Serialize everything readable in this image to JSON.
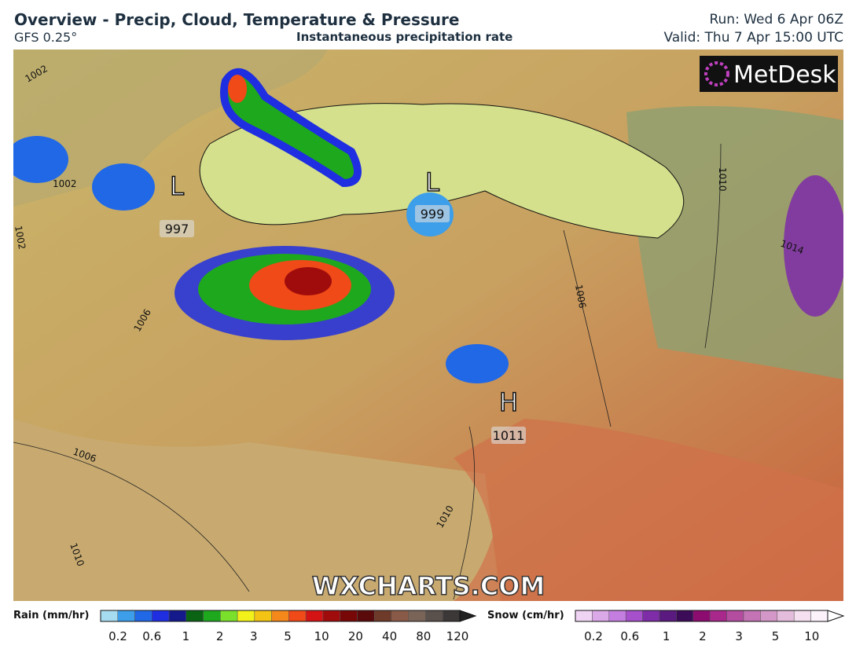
{
  "header": {
    "title": "Overview - Precip, Cloud, Temperature & Pressure",
    "model": "GFS 0.25°",
    "subtitle": "Instantaneous precipitation rate",
    "run": "Run: Wed 6 Apr 06Z",
    "valid": "Valid: Thu 7 Apr 15:00 UTC"
  },
  "map": {
    "logo": "MetDesk",
    "watermark": "WXCHARTS.COM",
    "centers": [
      {
        "symbol": "L",
        "value": "997"
      },
      {
        "symbol": "L",
        "value": "999"
      },
      {
        "symbol": "H",
        "value": "1011"
      }
    ],
    "isobar_labels": [
      "1002",
      "1002",
      "1002",
      "1006",
      "1006",
      "1006",
      "1010",
      "1010",
      "1010",
      "1014"
    ]
  },
  "legend": {
    "rain": {
      "label": "Rain (mm/hr)",
      "ticks": [
        "0.2",
        "0.6",
        "1",
        "2",
        "3",
        "5",
        "10",
        "20",
        "40",
        "80",
        "120"
      ],
      "colors": [
        "#a6dcef",
        "#3d9ee9",
        "#2168e6",
        "#1e2ee0",
        "#141a8c",
        "#0a6414",
        "#1ea81e",
        "#7be02c",
        "#f2f21a",
        "#f4c414",
        "#f4881a",
        "#ef4a18",
        "#d41414",
        "#a00c0c",
        "#780808",
        "#5a0a0a",
        "#6e3b2a",
        "#8a5a48",
        "#7a6458",
        "#5a504c",
        "#3c3838"
      ]
    },
    "snow": {
      "label": "Snow (cm/hr)",
      "ticks": [
        "0.2",
        "0.6",
        "1",
        "2",
        "3",
        "5",
        "10"
      ],
      "colors": [
        "#f0d4f4",
        "#dba8e8",
        "#c47ee0",
        "#a650cc",
        "#7e2ca8",
        "#5a1a80",
        "#3c0c58",
        "#8c0c70",
        "#a8288c",
        "#b44ca0",
        "#c474b4",
        "#d498c8",
        "#e4bcdc",
        "#f4e0f0",
        "#fbf2fa"
      ]
    }
  }
}
